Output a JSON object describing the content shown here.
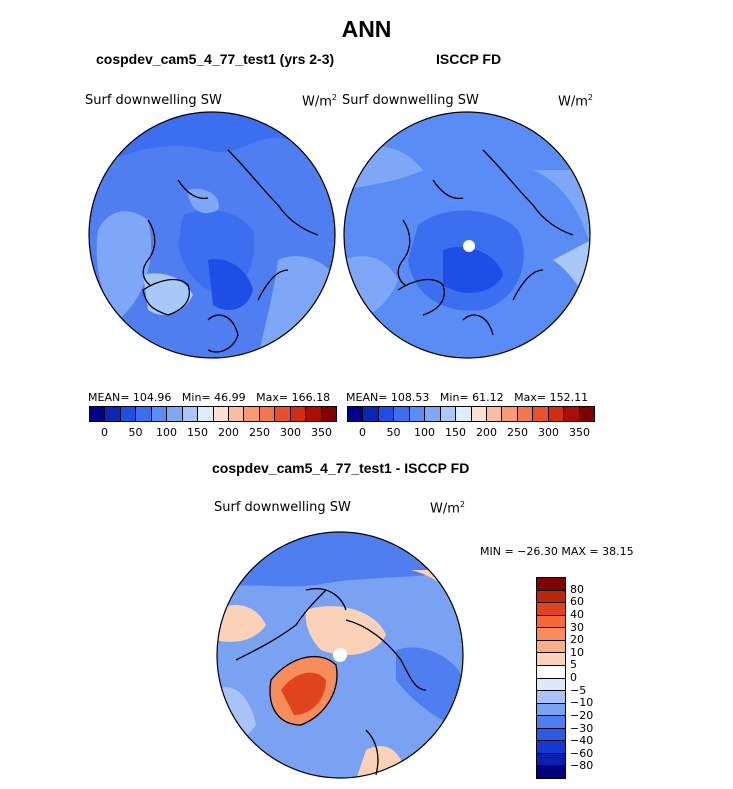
{
  "title": "ANN",
  "panels": [
    {
      "title": "cospdev_cam5_4_77_test1 (yrs 2-3)",
      "var_label": "Surf downwelling SW",
      "units": "W/m",
      "units_exp": "2",
      "stats": {
        "mean": "MEAN= 104.96",
        "min": "Min=  46.99",
        "max": "Max= 166.18"
      }
    },
    {
      "title": "ISCCP FD",
      "var_label": "Surf downwelling SW",
      "units": "W/m",
      "units_exp": "2",
      "stats": {
        "mean": "MEAN= 108.53",
        "min": "Min=  61.12",
        "max": "Max= 152.11"
      }
    }
  ],
  "colorbar_top": {
    "colors": [
      "#00008b",
      "#0a26b8",
      "#1e4ee6",
      "#3c6ef0",
      "#5a8cf5",
      "#7ea8f7",
      "#a8c8f8",
      "#ddeefa",
      "#fde0cf",
      "#fbbfa0",
      "#f89a72",
      "#f3764c",
      "#ea512b",
      "#d22d12",
      "#a80d06",
      "#800000"
    ],
    "ticks": [
      "0",
      "50",
      "100",
      "150",
      "200",
      "250",
      "300",
      "350"
    ]
  },
  "diff_panel": {
    "title": "cospdev_cam5_4_77_test1 - ISCCP FD",
    "var_label": "Surf downwelling SW",
    "units": "W/m",
    "units_exp": "2",
    "minmax": "MIN = −26.30 MAX =  38.15"
  },
  "colorbar_diff": {
    "colors": [
      "#800000",
      "#c0240c",
      "#e0441c",
      "#f56a34",
      "#f78c5c",
      "#f9ae86",
      "#fbd2b8",
      "#ffffff",
      "#dde8fb",
      "#a8c4f7",
      "#7aa2f2",
      "#4f7ef0",
      "#2a5ae8",
      "#1438d0",
      "#0a20b0",
      "#000080"
    ],
    "ticks": [
      "80",
      "60",
      "40",
      "30",
      "20",
      "10",
      "5",
      "0",
      "−5",
      "−10",
      "−20",
      "−30",
      "−40",
      "−60",
      "−80"
    ]
  },
  "map_colors": {
    "ocean_mid": "#4f7ef0",
    "ocean_light": "#7aa2f2",
    "ocean_pale": "#a8c4f7",
    "ocean_dark": "#2a5ae8",
    "warm_light": "#fbd2b8",
    "warm_mid": "#f78c5c",
    "warm_dark": "#e0441c"
  }
}
